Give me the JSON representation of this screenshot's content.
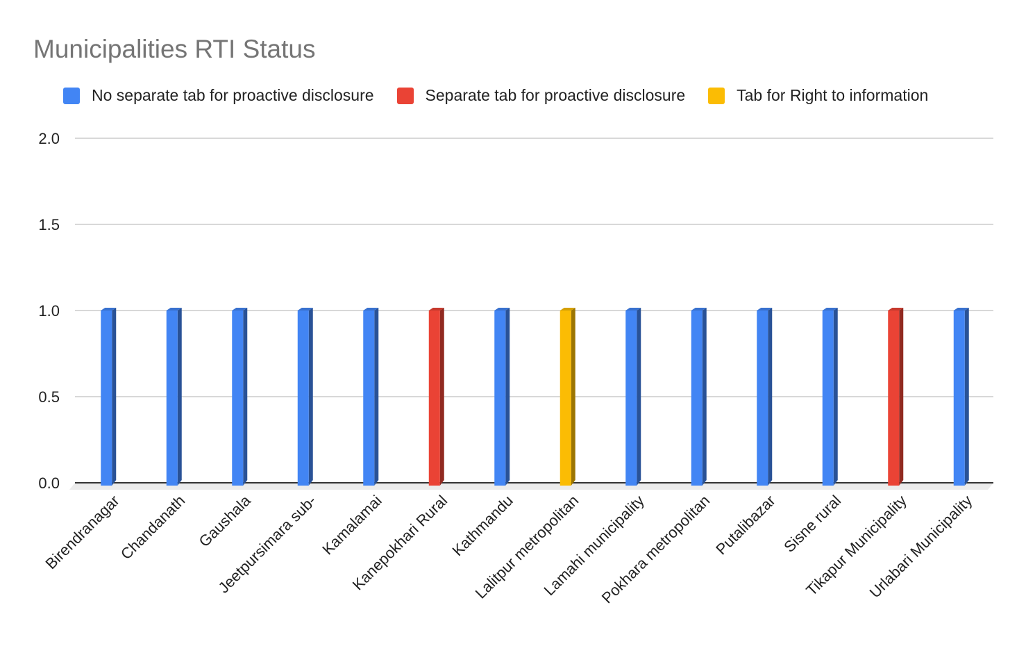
{
  "chart_data": {
    "type": "bar",
    "title": "Municipalities RTI Status",
    "xlabel": "",
    "ylabel": "",
    "ylim": [
      0,
      2
    ],
    "yticks": [
      "0.0",
      "0.5",
      "1.0",
      "1.5",
      "2.0"
    ],
    "grid": true,
    "legend_position": "top",
    "categories": [
      "Birendranagar",
      "Chandanath",
      "Gaushala",
      "Jeetpursimara sub-",
      "Kamalamai",
      "Kanepokhari Rural",
      "Kathmandu",
      "Lalitpur metropolitan",
      "Lamahi municipality",
      "Pokhara metropolitan",
      "Putalibazar",
      "Sisne rural",
      "Tikapur Municipality",
      "Urlabari Municipality"
    ],
    "series": [
      {
        "name": "No separate tab for proactive disclosure",
        "color": "#4285f4",
        "values": [
          1,
          1,
          1,
          1,
          1,
          null,
          1,
          null,
          1,
          1,
          1,
          1,
          null,
          1
        ]
      },
      {
        "name": "Separate tab for proactive disclosure",
        "color": "#ea4335",
        "values": [
          null,
          null,
          null,
          null,
          null,
          1,
          null,
          null,
          null,
          null,
          null,
          null,
          1,
          null
        ]
      },
      {
        "name": "Tab for Right to information",
        "color": "#fbbc04",
        "values": [
          null,
          null,
          null,
          null,
          null,
          null,
          null,
          1,
          null,
          null,
          null,
          null,
          null,
          null
        ]
      }
    ]
  }
}
